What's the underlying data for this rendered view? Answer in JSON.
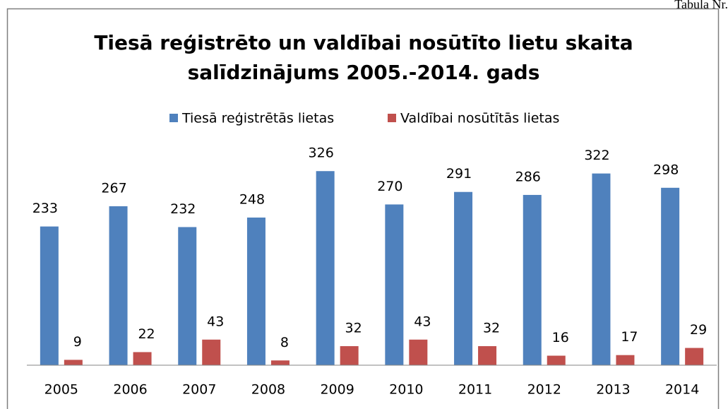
{
  "caption": "Tabula Nr.",
  "chart_data": {
    "type": "bar",
    "title": [
      "Tiesā reģistrēto un valdībai nosūtīto lietu skaita",
      "salīdzinājums 2005.-2014. gads"
    ],
    "categories": [
      "2005",
      "2006",
      "2007",
      "2008",
      "2009",
      "2010",
      "2011",
      "2012",
      "2013",
      "2014"
    ],
    "series": [
      {
        "name": "Tiesā reģistrētās lietas",
        "color": "#4f81bd",
        "values": [
          233,
          267,
          232,
          248,
          326,
          270,
          291,
          286,
          322,
          298
        ]
      },
      {
        "name": "Valdībai nosūtītās lietas",
        "color": "#c0504d",
        "values": [
          9,
          22,
          43,
          8,
          32,
          43,
          32,
          16,
          17,
          29
        ]
      }
    ],
    "ylim": [
      0,
      350
    ],
    "legend": "top"
  }
}
